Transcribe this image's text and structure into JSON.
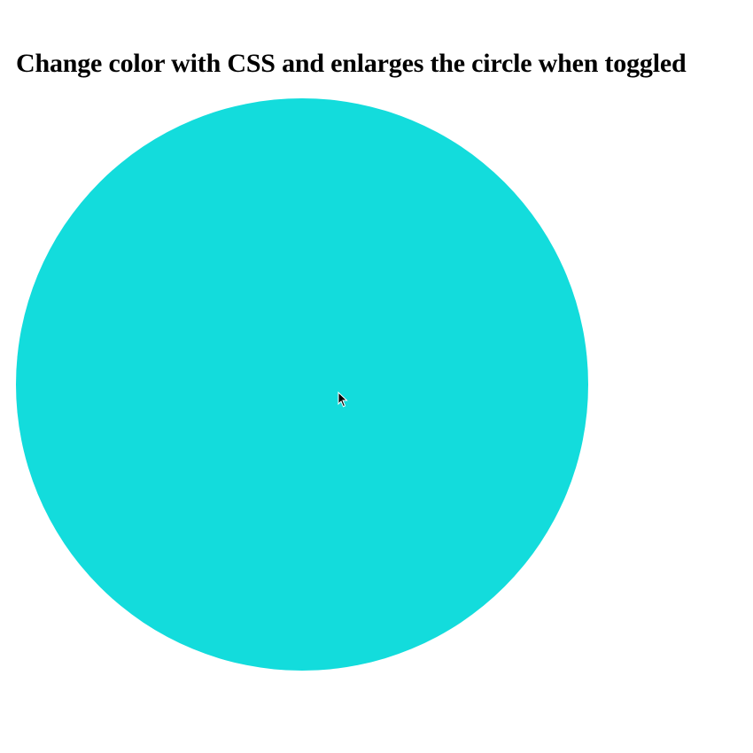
{
  "page": {
    "title": "Change color with CSS and enlarges the circle when toggled"
  },
  "circle": {
    "color": "#13DCDC",
    "state": "toggled"
  },
  "cursor": {
    "icon": "arrow-pointer-icon"
  }
}
